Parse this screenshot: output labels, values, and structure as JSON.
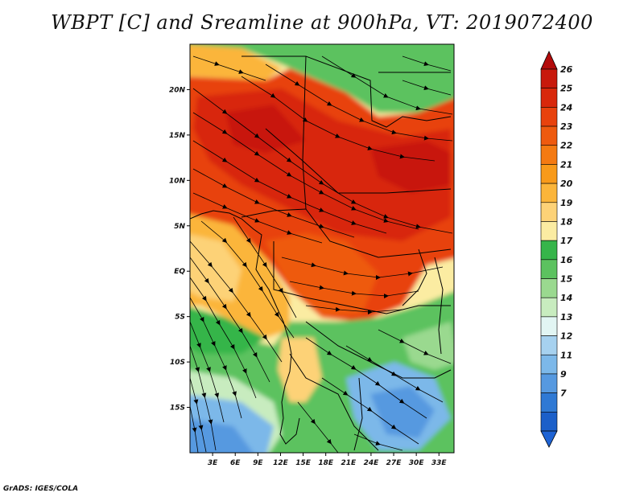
{
  "title": "WBPT [C] and Sreamline at 900hPa, VT: 2019072400",
  "credit": "GrADS: IGES/COLA",
  "map": {
    "region": "Africa (equatorial and southern)",
    "lat_ticks": [
      "20N",
      "15N",
      "10N",
      "5N",
      "EQ",
      "5S",
      "10S",
      "15S"
    ],
    "lat_values": [
      20,
      15,
      10,
      5,
      0,
      -5,
      -10,
      -15
    ],
    "lon_ticks": [
      "3E",
      "6E",
      "9E",
      "12E",
      "15E",
      "18E",
      "21E",
      "24E",
      "27E",
      "30E",
      "33E"
    ],
    "lon_values": [
      3,
      6,
      9,
      12,
      15,
      18,
      21,
      24,
      27,
      30,
      33
    ],
    "lat_range": [
      -20,
      25
    ],
    "lon_range": [
      0,
      35
    ],
    "streamline_color": "#000000"
  },
  "colorbar": {
    "labels": [
      "26",
      "25",
      "24",
      "23",
      "22",
      "21",
      "20",
      "19",
      "18",
      "17",
      "16",
      "15",
      "14",
      "13",
      "12",
      "11",
      "9",
      "7"
    ],
    "colors": [
      "#c8190c",
      "#d8280b",
      "#e8420d",
      "#ee5a0f",
      "#f47a12",
      "#f89a1a",
      "#fbb53a",
      "#fdd277",
      "#fbeca2",
      "#36b54a",
      "#5cc25f",
      "#9ad98f",
      "#c8ecbf",
      "#e2f5f3",
      "#a6d1ef",
      "#7cb8e9",
      "#5699e0",
      "#2f79d4",
      "#1b5fc9"
    ],
    "top_color": "#b30b0b",
    "bottom_color": "#1e63d4"
  }
}
